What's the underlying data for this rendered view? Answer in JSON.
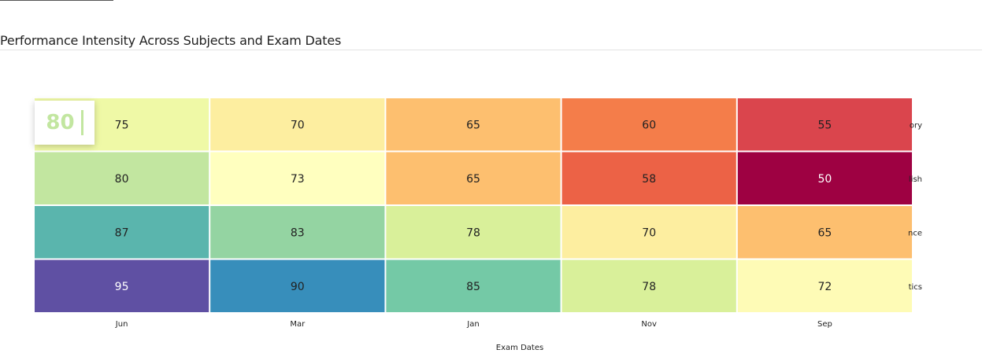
{
  "title": "Performance Intensity Across Subjects and Exam Dates",
  "chart_data": {
    "type": "heatmap",
    "xlabel": "Exam Dates",
    "x": [
      "Jun",
      "Mar",
      "Jan",
      "Nov",
      "Sep"
    ],
    "y": [
      "History",
      "English",
      "Science",
      "Mathematics"
    ],
    "y_visible_labels": [
      "ory",
      "lish",
      "nce",
      "tics"
    ],
    "values": [
      [
        75,
        70,
        65,
        60,
        55
      ],
      [
        80,
        73,
        65,
        58,
        50
      ],
      [
        87,
        83,
        78,
        70,
        65
      ],
      [
        95,
        90,
        85,
        78,
        72
      ]
    ],
    "colors": [
      [
        "#eff9a6",
        "#fdeea0",
        "#fdbf6f",
        "#f47d4a",
        "#da454d"
      ],
      [
        "#c2e6a0",
        "#ffffbf",
        "#fdbf6f",
        "#ec6246",
        "#9e0142"
      ],
      [
        "#5ab5ad",
        "#94d4a2",
        "#d9f09a",
        "#fdeea0",
        "#fdbf6f"
      ],
      [
        "#5f50a3",
        "#378ebb",
        "#74c9a6",
        "#d9f09a",
        "#fefbb6"
      ]
    ],
    "light_text_cells": [
      [
        1,
        4
      ],
      [
        3,
        0
      ]
    ]
  },
  "tooltip": {
    "value": "80"
  }
}
